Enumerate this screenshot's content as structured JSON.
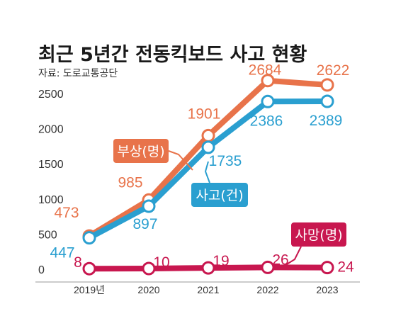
{
  "chart_data": {
    "type": "line",
    "title": "최근 5년간 전동킥보드 사고 현황",
    "subtitle": "자료: 도로교통공단",
    "categories": [
      "2019년",
      "2020",
      "2021",
      "2022",
      "2023"
    ],
    "ylim": [
      0,
      2500
    ],
    "yticks": [
      "0",
      "500",
      "1000",
      "1500",
      "2000",
      "2500"
    ],
    "grid": false,
    "series": [
      {
        "key": "injury",
        "name": "부상(명)",
        "values": [
          473,
          985,
          1901,
          2684,
          2622
        ],
        "labels": [
          "473",
          "985",
          "1901",
          "2684",
          "2622"
        ],
        "color": "#e8734a"
      },
      {
        "key": "accident",
        "name": "사고(건)",
        "values": [
          447,
          897,
          1735,
          2386,
          2389
        ],
        "labels": [
          "447",
          "897",
          "1735",
          "2386",
          "2389"
        ],
        "color": "#2a9fd0"
      },
      {
        "key": "death",
        "name": "사망(명)",
        "values": [
          8,
          10,
          19,
          26,
          24
        ],
        "labels": [
          "8",
          "10",
          "19",
          "26",
          "24"
        ],
        "color": "#c8174f"
      }
    ]
  }
}
